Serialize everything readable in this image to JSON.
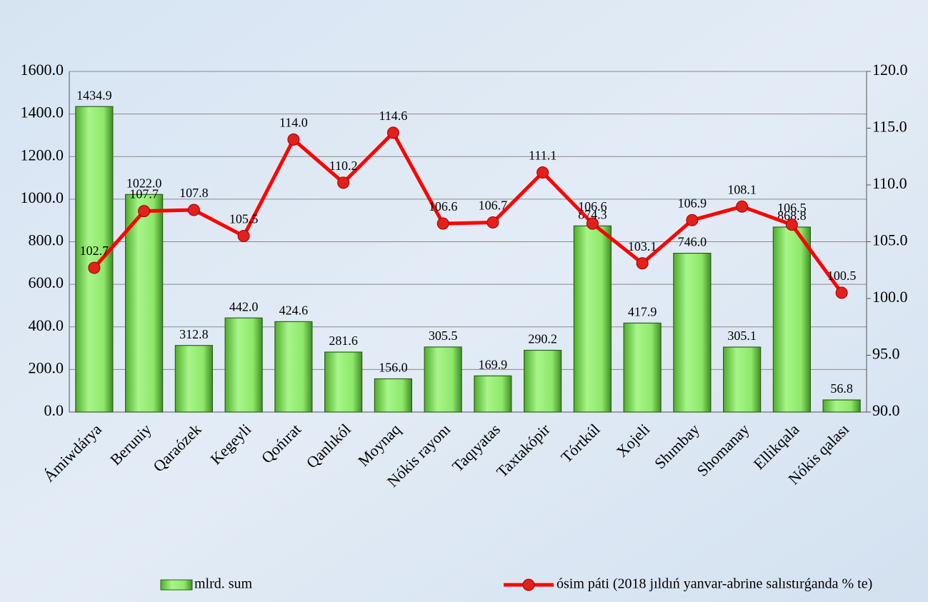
{
  "chart_data": {
    "type": "bar-line",
    "categories": [
      "Ámiwdárya",
      "Beruniy",
      "Qaraózek",
      "Kegeyli",
      "Qońırat",
      "Qanlıkól",
      "Moynaq",
      "Nókis rayonı",
      "Taqıyatas",
      "Taxtakópir",
      "Tórtkúl",
      "Xojeli",
      "Shımbay",
      "Shomanay",
      "Ellikqala",
      "Nókis qalası"
    ],
    "series": [
      {
        "name": "mlrd. sum",
        "type": "bar",
        "color": "#8ee86a",
        "axis": "y",
        "values": [
          1434.9,
          1022.0,
          312.8,
          442.0,
          424.6,
          281.6,
          156.0,
          305.5,
          169.9,
          290.2,
          874.3,
          417.9,
          746.0,
          305.1,
          868.8,
          56.8
        ],
        "value_labels": [
          "1434.9",
          "1022.0",
          "312.8",
          "442.0",
          "424.6",
          "281.6",
          "156.0",
          "305.5",
          "169.9",
          "290.2",
          "874.3",
          "417.9",
          "746.0",
          "305.1",
          "868.8",
          "56.8"
        ]
      },
      {
        "name": "ósim páti (2018 jıldıń yanvar-abrine salıstırǵanda % te)",
        "type": "line",
        "color": "#ff0000",
        "axis": "y2",
        "values": [
          102.7,
          107.7,
          107.8,
          105.5,
          114.0,
          110.2,
          114.6,
          106.6,
          106.7,
          111.1,
          106.6,
          103.1,
          106.9,
          108.1,
          106.5,
          100.5
        ],
        "value_labels": [
          "102.7",
          "107.7",
          "107.8",
          "105.5",
          "114.0",
          "110.2",
          "114.6",
          "106.6",
          "106.7",
          "111.1",
          "106.6",
          "103.1",
          "106.9",
          "108.1",
          "106.5",
          "100.5"
        ]
      }
    ],
    "ylim": [
      0,
      1600
    ],
    "yticks": [
      {
        "value": 0,
        "label": "0.0"
      },
      {
        "value": 200,
        "label": "200.0"
      },
      {
        "value": 400,
        "label": "400.0"
      },
      {
        "value": 600,
        "label": "600.0"
      },
      {
        "value": 800,
        "label": "800.0"
      },
      {
        "value": 1000,
        "label": "1000.0"
      },
      {
        "value": 1200,
        "label": "1200.0"
      },
      {
        "value": 1400,
        "label": "1400.0"
      },
      {
        "value": 1600,
        "label": "1600.0"
      }
    ],
    "y2lim": [
      90,
      120
    ],
    "y2ticks": [
      {
        "value": 90,
        "label": "90.0"
      },
      {
        "value": 95,
        "label": "95.0"
      },
      {
        "value": 100,
        "label": "100.0"
      },
      {
        "value": 105,
        "label": "105.0"
      },
      {
        "value": 110,
        "label": "110.0"
      },
      {
        "value": 115,
        "label": "115.0"
      },
      {
        "value": 120,
        "label": "120.0"
      }
    ],
    "grid": true,
    "legend": "bottom"
  }
}
